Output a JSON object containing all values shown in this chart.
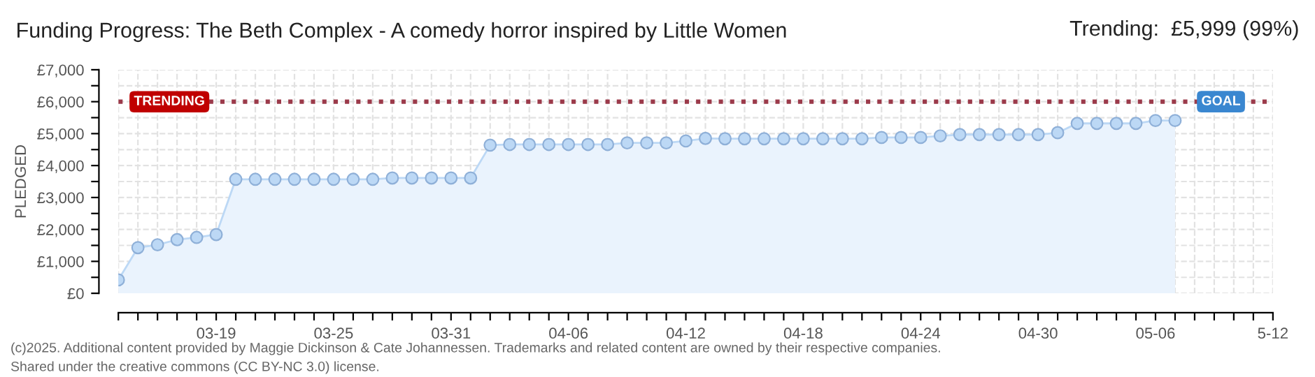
{
  "chart_data": {
    "type": "area",
    "title": "Funding Progress: The Beth Complex - A comedy horror inspired by Little Women",
    "ylabel": "PLEDGED",
    "annotations": [
      "Trending:  £5,999 (99%)",
      {
        "text": "TRENDING",
        "x": "2025-03-14",
        "y": 5999
      },
      "(c)2025. Additional content provided by Maggie Dickinson & Cate Johannessen. Trademarks and related content are owned by their respective companies.",
      "Shared under the creative commons (CC BY-NC 3.0) license."
    ],
    "x": [
      "2025-03-14",
      "2025-03-15",
      "2025-03-16",
      "2025-03-17",
      "2025-03-18",
      "2025-03-19",
      "2025-03-20",
      "2025-03-21",
      "2025-03-22",
      "2025-03-23",
      "2025-03-24",
      "2025-03-25",
      "2025-03-26",
      "2025-03-27",
      "2025-03-28",
      "2025-03-29",
      "2025-03-30",
      "2025-03-31",
      "2025-04-01",
      "2025-04-02",
      "2025-04-03",
      "2025-04-04",
      "2025-04-05",
      "2025-04-06",
      "2025-04-07",
      "2025-04-08",
      "2025-04-09",
      "2025-04-10",
      "2025-04-11",
      "2025-04-12",
      "2025-04-13",
      "2025-04-14",
      "2025-04-15",
      "2025-04-16",
      "2025-04-17",
      "2025-04-18",
      "2025-04-19",
      "2025-04-20",
      "2025-04-21",
      "2025-04-22",
      "2025-04-23",
      "2025-04-24",
      "2025-04-25",
      "2025-04-26",
      "2025-04-27",
      "2025-04-28",
      "2025-04-29",
      "2025-04-30",
      "2025-05-01",
      "2025-05-02",
      "2025-05-03",
      "2025-05-04",
      "2025-05-05",
      "2025-05-06",
      "2025-05-07"
    ],
    "series": [
      {
        "color": "#bcd8f5",
        "values": [
          420,
          1430,
          1520,
          1680,
          1750,
          1840,
          3570,
          3570,
          3570,
          3570,
          3570,
          3570,
          3570,
          3570,
          3610,
          3610,
          3610,
          3610,
          3610,
          4640,
          4660,
          4660,
          4660,
          4660,
          4660,
          4660,
          4710,
          4710,
          4710,
          4770,
          4850,
          4840,
          4840,
          4840,
          4840,
          4840,
          4840,
          4840,
          4840,
          4880,
          4880,
          4880,
          4930,
          4970,
          4970,
          4970,
          4970,
          4970,
          5030,
          5320,
          5320,
          5320,
          5320,
          5410,
          5410
        ]
      }
    ],
    "marker": "circle",
    "grid": true,
    "ylim": [
      0,
      7000
    ],
    "yticks": [
      {
        "value": 0,
        "label": "£0"
      },
      {
        "value": 500,
        "label": null
      },
      {
        "value": 1000,
        "label": "£1,000"
      },
      {
        "value": 1500,
        "label": null
      },
      {
        "value": 2000,
        "label": "£2,000"
      },
      {
        "value": 2500,
        "label": null
      },
      {
        "value": 3000,
        "label": "£3,000"
      },
      {
        "value": 3500,
        "label": null
      },
      {
        "value": 4000,
        "label": "£4,000"
      },
      {
        "value": 4500,
        "label": null
      },
      {
        "value": 5000,
        "label": "£5,000"
      },
      {
        "value": 5500,
        "label": null
      },
      {
        "value": 6000,
        "label": "£6,000"
      },
      {
        "value": 6500,
        "label": null
      },
      {
        "value": 7000,
        "label": "£7,000"
      }
    ],
    "xlim": [
      "2025-03-14",
      "2025-05-12"
    ],
    "xticks": [
      {
        "value": "2025-03-14",
        "label": null
      },
      {
        "value": "2025-03-15",
        "label": null
      },
      {
        "value": "2025-03-16",
        "label": null
      },
      {
        "value": "2025-03-17",
        "label": null
      },
      {
        "value": "2025-03-18",
        "label": null
      },
      {
        "value": "2025-03-19",
        "label": "03-19"
      },
      {
        "value": "2025-03-20",
        "label": null
      },
      {
        "value": "2025-03-21",
        "label": null
      },
      {
        "value": "2025-03-22",
        "label": null
      },
      {
        "value": "2025-03-23",
        "label": null
      },
      {
        "value": "2025-03-24",
        "label": null
      },
      {
        "value": "2025-03-25",
        "label": "03-25"
      },
      {
        "value": "2025-03-26",
        "label": null
      },
      {
        "value": "2025-03-27",
        "label": null
      },
      {
        "value": "2025-03-28",
        "label": null
      },
      {
        "value": "2025-03-29",
        "label": null
      },
      {
        "value": "2025-03-30",
        "label": null
      },
      {
        "value": "2025-03-31",
        "label": "03-31"
      },
      {
        "value": "2025-04-01",
        "label": null
      },
      {
        "value": "2025-04-02",
        "label": null
      },
      {
        "value": "2025-04-03",
        "label": null
      },
      {
        "value": "2025-04-04",
        "label": null
      },
      {
        "value": "2025-04-05",
        "label": null
      },
      {
        "value": "2025-04-06",
        "label": "04-06"
      },
      {
        "value": "2025-04-07",
        "label": null
      },
      {
        "value": "2025-04-08",
        "label": null
      },
      {
        "value": "2025-04-09",
        "label": null
      },
      {
        "value": "2025-04-10",
        "label": null
      },
      {
        "value": "2025-04-11",
        "label": null
      },
      {
        "value": "2025-04-12",
        "label": "04-12"
      },
      {
        "value": "2025-04-13",
        "label": null
      },
      {
        "value": "2025-04-14",
        "label": null
      },
      {
        "value": "2025-04-15",
        "label": null
      },
      {
        "value": "2025-04-16",
        "label": null
      },
      {
        "value": "2025-04-17",
        "label": null
      },
      {
        "value": "2025-04-18",
        "label": "04-18"
      },
      {
        "value": "2025-04-19",
        "label": null
      },
      {
        "value": "2025-04-20",
        "label": null
      },
      {
        "value": "2025-04-21",
        "label": null
      },
      {
        "value": "2025-04-22",
        "label": null
      },
      {
        "value": "2025-04-23",
        "label": null
      },
      {
        "value": "2025-04-24",
        "label": "04-24"
      },
      {
        "value": "2025-04-25",
        "label": null
      },
      {
        "value": "2025-04-26",
        "label": null
      },
      {
        "value": "2025-04-27",
        "label": null
      },
      {
        "value": "2025-04-28",
        "label": null
      },
      {
        "value": "2025-04-29",
        "label": null
      },
      {
        "value": "2025-04-30",
        "label": "04-30"
      },
      {
        "value": "2025-05-01",
        "label": null
      },
      {
        "value": "2025-05-02",
        "label": null
      },
      {
        "value": "2025-05-03",
        "label": null
      },
      {
        "value": "2025-05-04",
        "label": null
      },
      {
        "value": "2025-05-05",
        "label": null
      },
      {
        "value": "2025-05-06",
        "label": "05-06"
      },
      {
        "value": "2025-05-07",
        "label": null
      },
      {
        "value": "2025-05-08",
        "label": null
      },
      {
        "value": "2025-05-09",
        "label": null
      },
      {
        "value": "2025-05-10",
        "label": null
      },
      {
        "value": "2025-05-11",
        "label": null
      },
      {
        "value": "2025-05-12",
        "label": "5-12"
      }
    ],
    "ref_lines": [
      {
        "axis": "y",
        "value": 6000,
        "label": "GOAL",
        "color": "#9b3a4a",
        "line_style": "dotted"
      }
    ]
  }
}
